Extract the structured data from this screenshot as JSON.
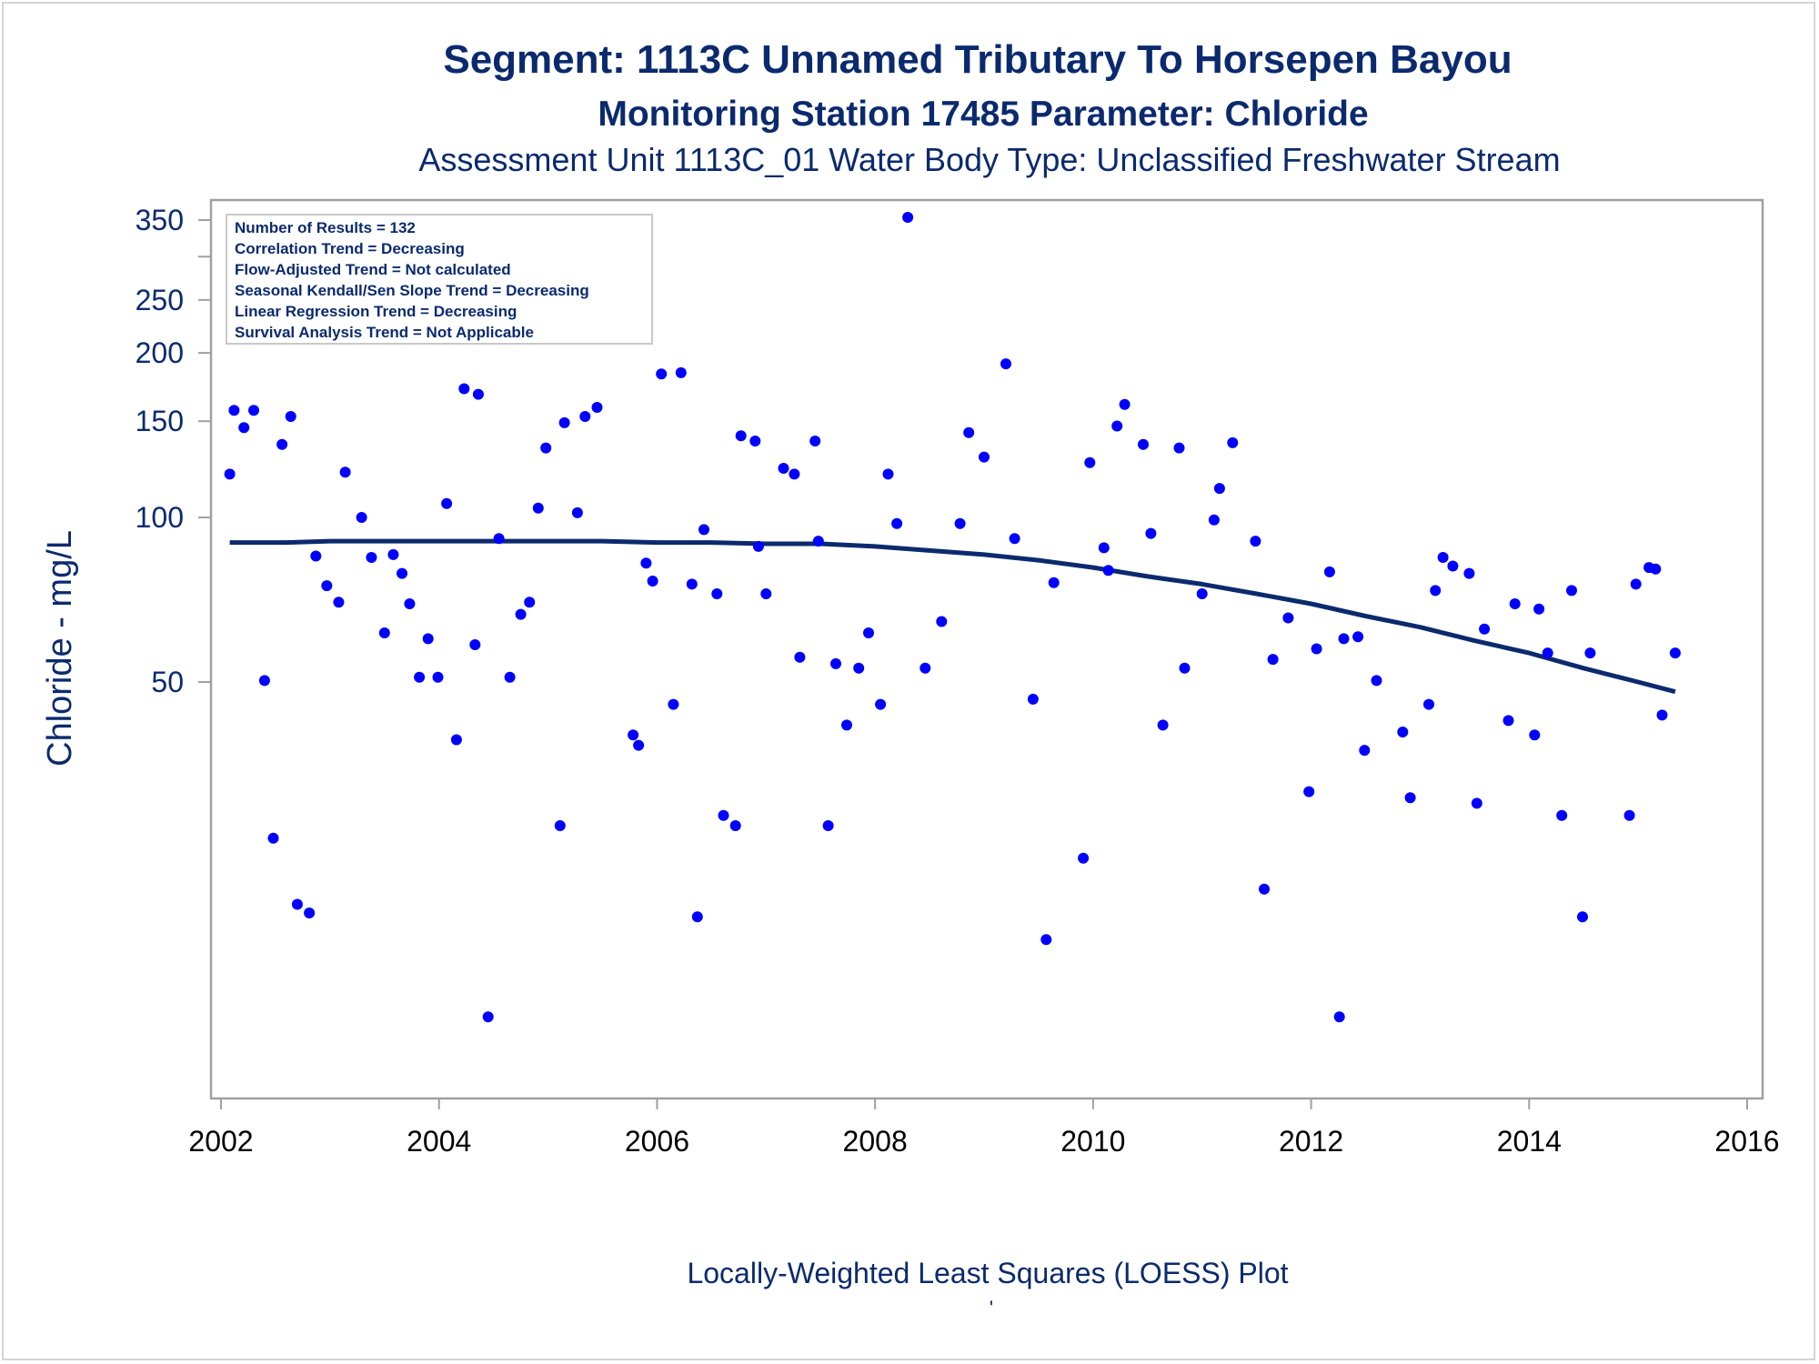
{
  "chart_data": {
    "type": "scatter",
    "title": "Segment: 1113C  Unnamed Tributary To Horsepen Bayou",
    "subtitle": "Monitoring Station 17485 Parameter: Chloride",
    "subtitle2": "Assessment Unit 1113C_01   Water Body Type: Unclassified Freshwater Stream",
    "xlabel": "Locally-Weighted Least Squares (LOESS) Plot",
    "ylabel": "Chloride - mg/L",
    "footnote": "'",
    "y_scale": "log",
    "xlim": [
      2002,
      2016
    ],
    "ylim": [
      13,
      360
    ],
    "x_ticks": [
      "2002",
      "2004",
      "2006",
      "2008",
      "2010",
      "2012",
      "2014",
      "2016"
    ],
    "y_ticks": [
      "50",
      "100",
      "150",
      "200",
      "250",
      "350"
    ],
    "y_minor_ticks": [
      300
    ],
    "grid": false,
    "legend_placement": "top-left",
    "colors": {
      "points": "#0000ff",
      "loess": "#0b2a6e",
      "text": "#0b2a6e",
      "axis": "#a0a0a0"
    },
    "inset_lines": [
      "Number of Results = 132",
      "Correlation Trend = Decreasing",
      "Flow-Adjusted Trend = Not calculated",
      "Seasonal Kendall/Sen Slope Trend = Decreasing",
      "Linear Regression Trend = Decreasing",
      "Survival Analysis Trend = Not Applicable"
    ],
    "series": [
      {
        "type": "scatter",
        "points": [
          [
            2002.08,
            120
          ],
          [
            2002.12,
            157
          ],
          [
            2002.21,
            146
          ],
          [
            2002.3,
            157
          ],
          [
            2002.4,
            50.3
          ],
          [
            2002.48,
            25.9
          ],
          [
            2002.56,
            136
          ],
          [
            2002.64,
            153
          ],
          [
            2002.7,
            19.6
          ],
          [
            2002.81,
            18.9
          ],
          [
            2002.87,
            85
          ],
          [
            2002.97,
            75
          ],
          [
            2003.08,
            70
          ],
          [
            2003.14,
            121
          ],
          [
            2003.29,
            100
          ],
          [
            2003.38,
            84.5
          ],
          [
            2003.5,
            61.5
          ],
          [
            2003.58,
            85.5
          ],
          [
            2003.66,
            79
          ],
          [
            2003.73,
            69.5
          ],
          [
            2003.82,
            51
          ],
          [
            2003.9,
            60
          ],
          [
            2003.99,
            51
          ],
          [
            2004.07,
            106
          ],
          [
            2004.16,
            39.2
          ],
          [
            2004.23,
            172
          ],
          [
            2004.33,
            58.5
          ],
          [
            2004.36,
            168
          ],
          [
            2004.45,
            12.2
          ],
          [
            2004.55,
            91.5
          ],
          [
            2004.65,
            51
          ],
          [
            2004.75,
            66.5
          ],
          [
            2004.83,
            70
          ],
          [
            2004.91,
            104
          ],
          [
            2004.98,
            134
          ],
          [
            2005.11,
            27.3
          ],
          [
            2005.15,
            149
          ],
          [
            2005.27,
            102
          ],
          [
            2005.34,
            153
          ],
          [
            2005.45,
            159
          ],
          [
            2005.78,
            40
          ],
          [
            2005.83,
            38.3
          ],
          [
            2005.9,
            82.5
          ],
          [
            2005.96,
            76.5
          ],
          [
            2006.04,
            183
          ],
          [
            2006.15,
            45.5
          ],
          [
            2006.22,
            184
          ],
          [
            2006.32,
            75.5
          ],
          [
            2006.37,
            18.6
          ],
          [
            2006.43,
            95
          ],
          [
            2006.55,
            72.5
          ],
          [
            2006.61,
            28.5
          ],
          [
            2006.72,
            27.3
          ],
          [
            2006.77,
            141
          ],
          [
            2006.9,
            138
          ],
          [
            2006.93,
            88.5
          ],
          [
            2007.0,
            72.5
          ],
          [
            2007.16,
            123
          ],
          [
            2007.26,
            120
          ],
          [
            2007.31,
            55.5
          ],
          [
            2007.45,
            138
          ],
          [
            2007.48,
            90.5
          ],
          [
            2007.57,
            27.3
          ],
          [
            2007.64,
            54
          ],
          [
            2007.74,
            41.7
          ],
          [
            2007.85,
            53
          ],
          [
            2007.94,
            61.5
          ],
          [
            2008.05,
            45.5
          ],
          [
            2008.12,
            120
          ],
          [
            2008.2,
            97.5
          ],
          [
            2008.3,
            354
          ],
          [
            2008.46,
            53
          ],
          [
            2008.61,
            64.5
          ],
          [
            2008.78,
            97.5
          ],
          [
            2008.86,
            143
          ],
          [
            2009.0,
            129
          ],
          [
            2009.2,
            191
          ],
          [
            2009.28,
            91.5
          ],
          [
            2009.45,
            46.5
          ],
          [
            2009.57,
            16.9
          ],
          [
            2009.64,
            76
          ],
          [
            2009.91,
            23.8
          ],
          [
            2009.97,
            126
          ],
          [
            2010.1,
            88
          ],
          [
            2010.14,
            80
          ],
          [
            2010.22,
            147
          ],
          [
            2010.29,
            161
          ],
          [
            2010.46,
            136
          ],
          [
            2010.53,
            93.5
          ],
          [
            2010.64,
            41.7
          ],
          [
            2010.79,
            134
          ],
          [
            2010.84,
            53
          ],
          [
            2011.0,
            72.5
          ],
          [
            2011.11,
            99
          ],
          [
            2011.16,
            113
          ],
          [
            2011.28,
            137
          ],
          [
            2011.49,
            90.5
          ],
          [
            2011.57,
            20.9
          ],
          [
            2011.65,
            55
          ],
          [
            2011.79,
            65.5
          ],
          [
            2011.98,
            31.5
          ],
          [
            2012.05,
            57.5
          ],
          [
            2012.17,
            79.5
          ],
          [
            2012.26,
            12.2
          ],
          [
            2012.3,
            60
          ],
          [
            2012.43,
            60.5
          ],
          [
            2012.49,
            37.5
          ],
          [
            2012.6,
            50.3
          ],
          [
            2012.84,
            40.5
          ],
          [
            2012.91,
            30.7
          ],
          [
            2013.08,
            45.5
          ],
          [
            2013.14,
            73.5
          ],
          [
            2013.21,
            84.5
          ],
          [
            2013.3,
            81.5
          ],
          [
            2013.45,
            79
          ],
          [
            2013.52,
            30
          ],
          [
            2013.59,
            62.5
          ],
          [
            2013.81,
            42.5
          ],
          [
            2013.87,
            69.5
          ],
          [
            2014.05,
            40
          ],
          [
            2014.09,
            68
          ],
          [
            2014.17,
            56.5
          ],
          [
            2014.3,
            28.5
          ],
          [
            2014.39,
            73.5
          ],
          [
            2014.49,
            18.6
          ],
          [
            2014.56,
            56.5
          ],
          [
            2014.92,
            28.5
          ],
          [
            2014.98,
            75.5
          ],
          [
            2015.1,
            81
          ],
          [
            2015.16,
            80.5
          ],
          [
            2015.22,
            43.5
          ],
          [
            2015.34,
            56.5
          ]
        ]
      },
      {
        "type": "line",
        "points": [
          [
            2002.08,
            90
          ],
          [
            2002.6,
            90
          ],
          [
            2003.0,
            90.5
          ],
          [
            2004.0,
            90.5
          ],
          [
            2005.0,
            90.5
          ],
          [
            2005.5,
            90.5
          ],
          [
            2006.0,
            90
          ],
          [
            2006.5,
            90
          ],
          [
            2007.0,
            89.5
          ],
          [
            2007.5,
            89.5
          ],
          [
            2008.0,
            88.5
          ],
          [
            2008.5,
            87
          ],
          [
            2009.0,
            85.5
          ],
          [
            2009.5,
            83.5
          ],
          [
            2010.0,
            81
          ],
          [
            2010.5,
            78
          ],
          [
            2011.0,
            75.5
          ],
          [
            2011.5,
            72.5
          ],
          [
            2012.0,
            69.5
          ],
          [
            2012.5,
            66
          ],
          [
            2013.0,
            63
          ],
          [
            2013.5,
            59.5
          ],
          [
            2014.0,
            56.5
          ],
          [
            2014.5,
            53
          ],
          [
            2015.0,
            50
          ],
          [
            2015.34,
            48
          ]
        ]
      }
    ]
  }
}
